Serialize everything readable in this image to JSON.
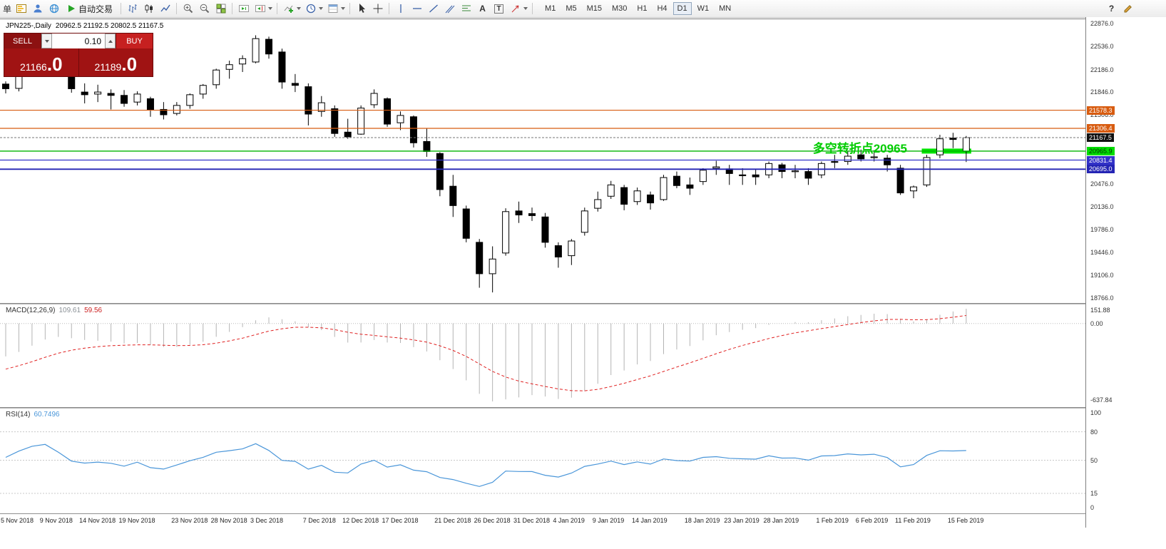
{
  "toolbar": {
    "new_order_fragment": "单",
    "autotrading_label": "自动交易",
    "help_label": "?",
    "icon_glyphs": {
      "text_tool": "A",
      "label_tool": "T"
    },
    "timeframes": [
      "M1",
      "M5",
      "M15",
      "M30",
      "H1",
      "H4",
      "D1",
      "W1",
      "MN"
    ],
    "active_timeframe": "D1",
    "icons": [
      "new-order",
      "market-watch",
      "accounts",
      "navigator",
      "autotrading",
      "bar-chart",
      "candlestick-chart",
      "line-chart",
      "zoom-in",
      "zoom-out",
      "tile-windows",
      "auto-scroll",
      "chart-shift",
      "indicators",
      "periods",
      "templates",
      "cursor",
      "crosshair",
      "vertical-line",
      "horizontal-line",
      "trendline",
      "equidistant-channel",
      "fibonacci",
      "text",
      "text-label",
      "arrow-tools",
      "help",
      "draw-cursor"
    ]
  },
  "chart_header": {
    "symbol_period": "JPN225-,Daily",
    "ohlc": "20962.5 21192.5 20802.5 21167.5"
  },
  "one_click": {
    "sell_label": "SELL",
    "buy_label": "BUY",
    "lot": "0.10",
    "sell_price_main": "21166",
    "sell_price_frac": ".0",
    "buy_price_main": "21189",
    "buy_price_frac": ".0"
  },
  "annotation": {
    "text": "多空转折点20965",
    "color": "#00cc00"
  },
  "chart_data": {
    "type": "candlestick",
    "symbol": "JPN225",
    "period": "Daily",
    "title": "JPN225-,Daily",
    "last_ohlc": {
      "open": 20962.5,
      "high": 21192.5,
      "low": 20802.5,
      "close": 21167.5
    },
    "colors": {
      "bull": "#ffffff",
      "bear": "#000000",
      "wick": "#000000",
      "highlight": "#00e400",
      "background": "#ffffff"
    },
    "y_axis": {
      "range": [
        18766.0,
        22876.0
      ],
      "ticks": [
        22876.0,
        22536.0,
        22186.0,
        21846.0,
        21506.0,
        20476.0,
        20136.0,
        19786.0,
        19446.0,
        19106.0,
        18766.0
      ]
    },
    "x_axis": {
      "labels": [
        "5 Nov 2018",
        "9 Nov 2018",
        "14 Nov 2018",
        "19 Nov 2018",
        "23 Nov 2018",
        "28 Nov 2018",
        "3 Dec 2018",
        "7 Dec 2018",
        "12 Dec 2018",
        "17 Dec 2018",
        "21 Dec 2018",
        "26 Dec 2018",
        "31 Dec 2018",
        "4 Jan 2019",
        "9 Jan 2019",
        "14 Jan 2019",
        "18 Jan 2019",
        "23 Jan 2019",
        "28 Jan 2019",
        "1 Feb 2019",
        "6 Feb 2019",
        "11 Feb 2019",
        "15 Feb 2019"
      ]
    },
    "candles": [
      [
        "5 Nov 2018",
        21970,
        22010,
        21830,
        21900
      ],
      [
        "6 Nov 2018",
        21905,
        22165,
        21860,
        22150
      ],
      [
        "7 Nov 2018",
        22180,
        22430,
        22110,
        22390
      ],
      [
        "8 Nov 2018",
        22420,
        22580,
        22300,
        22490
      ],
      [
        "9 Nov 2018",
        22450,
        22500,
        22180,
        22250
      ],
      [
        "12 Nov 2018",
        22270,
        22310,
        21840,
        21900
      ],
      [
        "13 Nov 2018",
        21850,
        21980,
        21680,
        21810
      ],
      [
        "14 Nov 2018",
        21820,
        21960,
        21700,
        21850
      ],
      [
        "15 Nov 2018",
        21830,
        21890,
        21590,
        21800
      ],
      [
        "16 Nov 2018",
        21800,
        21880,
        21630,
        21680
      ],
      [
        "19 Nov 2018",
        21700,
        21860,
        21650,
        21820
      ],
      [
        "20 Nov 2018",
        21750,
        21780,
        21480,
        21580
      ],
      [
        "21 Nov 2018",
        21590,
        21700,
        21440,
        21510
      ],
      [
        "22 Nov 2018",
        21530,
        21700,
        21500,
        21650
      ],
      [
        "23 Nov 2018",
        21650,
        21830,
        21600,
        21810
      ],
      [
        "26 Nov 2018",
        21820,
        21970,
        21750,
        21950
      ],
      [
        "27 Nov 2018",
        21960,
        22200,
        21900,
        22180
      ],
      [
        "28 Nov 2018",
        22190,
        22320,
        22050,
        22260
      ],
      [
        "29 Nov 2018",
        22270,
        22400,
        22150,
        22350
      ],
      [
        "30 Nov 2018",
        22300,
        22700,
        22280,
        22650
      ],
      [
        "3 Dec 2018",
        22640,
        22680,
        22350,
        22420
      ],
      [
        "4 Dec 2018",
        22450,
        22500,
        21900,
        22000
      ],
      [
        "5 Dec 2018",
        21980,
        22120,
        21850,
        21950
      ],
      [
        "6 Dec 2018",
        21930,
        21980,
        21350,
        21520
      ],
      [
        "7 Dec 2018",
        21560,
        21790,
        21480,
        21690
      ],
      [
        "10 Dec 2018",
        21600,
        21650,
        21180,
        21230
      ],
      [
        "11 Dec 2018",
        21250,
        21450,
        21150,
        21180
      ],
      [
        "12 Dec 2018",
        21220,
        21650,
        21210,
        21610
      ],
      [
        "13 Dec 2018",
        21660,
        21890,
        21610,
        21830
      ],
      [
        "14 Dec 2018",
        21750,
        21770,
        21330,
        21370
      ],
      [
        "17 Dec 2018",
        21390,
        21560,
        21280,
        21500
      ],
      [
        "18 Dec 2018",
        21480,
        21500,
        21020,
        21090
      ],
      [
        "19 Dec 2018",
        21110,
        21310,
        20880,
        20960
      ],
      [
        "20 Dec 2018",
        20930,
        20950,
        20290,
        20390
      ],
      [
        "21 Dec 2018",
        20440,
        20610,
        19980,
        20150
      ],
      [
        "24 Dec 2018",
        20100,
        20150,
        19600,
        19660
      ],
      [
        "25 Dec 2018",
        19600,
        19650,
        18920,
        19130
      ],
      [
        "26 Dec 2018",
        19130,
        19540,
        18850,
        19350
      ],
      [
        "27 Dec 2018",
        19440,
        20110,
        19400,
        20060
      ],
      [
        "28 Dec 2018",
        20070,
        20210,
        19890,
        20010
      ],
      [
        "31 Dec 2018",
        20030,
        20120,
        19920,
        20000
      ],
      [
        "2 Jan 2019",
        19980,
        20040,
        19520,
        19600
      ],
      [
        "3 Jan 2019",
        19550,
        19600,
        19220,
        19380
      ],
      [
        "4 Jan 2019",
        19400,
        19650,
        19260,
        19620
      ],
      [
        "7 Jan 2019",
        19750,
        20120,
        19700,
        20070
      ],
      [
        "8 Jan 2019",
        20110,
        20360,
        20060,
        20240
      ],
      [
        "9 Jan 2019",
        20290,
        20520,
        20250,
        20460
      ],
      [
        "10 Jan 2019",
        20420,
        20460,
        20080,
        20170
      ],
      [
        "11 Jan 2019",
        20210,
        20420,
        20160,
        20370
      ],
      [
        "14 Jan 2019",
        20310,
        20360,
        20090,
        20190
      ],
      [
        "15 Jan 2019",
        20240,
        20610,
        20220,
        20570
      ],
      [
        "16 Jan 2019",
        20590,
        20660,
        20410,
        20450
      ],
      [
        "17 Jan 2019",
        20460,
        20570,
        20310,
        20410
      ],
      [
        "18 Jan 2019",
        20510,
        20710,
        20460,
        20680
      ],
      [
        "21 Jan 2019",
        20710,
        20820,
        20610,
        20730
      ],
      [
        "22 Jan 2019",
        20700,
        20760,
        20460,
        20630
      ],
      [
        "23 Jan 2019",
        20610,
        20710,
        20460,
        20600
      ],
      [
        "24 Jan 2019",
        20610,
        20690,
        20460,
        20580
      ],
      [
        "25 Jan 2019",
        20610,
        20810,
        20560,
        20780
      ],
      [
        "28 Jan 2019",
        20760,
        20790,
        20560,
        20660
      ],
      [
        "29 Jan 2019",
        20670,
        20760,
        20560,
        20670
      ],
      [
        "30 Jan 2019",
        20660,
        20710,
        20460,
        20560
      ],
      [
        "31 Jan 2019",
        20610,
        20810,
        20560,
        20780
      ],
      [
        "1 Feb 2019",
        20810,
        20910,
        20710,
        20800
      ],
      [
        "4 Feb 2019",
        20810,
        20960,
        20760,
        20890
      ],
      [
        "5 Feb 2019",
        20910,
        20990,
        20810,
        20850
      ],
      [
        "6 Feb 2019",
        20880,
        20980,
        20810,
        20880
      ],
      [
        "7 Feb 2019",
        20860,
        20910,
        20660,
        20760
      ],
      [
        "8 Feb 2019",
        20710,
        20760,
        20310,
        20340
      ],
      [
        "11 Feb 2019",
        20370,
        20450,
        20260,
        20430
      ],
      [
        "12 Feb 2019",
        20460,
        20910,
        20430,
        20870
      ],
      [
        "13 Feb 2019",
        20910,
        21210,
        20860,
        21150
      ],
      [
        "14 Feb 2019",
        21160,
        21240,
        21010,
        21140
      ],
      [
        "15 Feb 2019",
        20962.5,
        21192.5,
        20802.5,
        21167.5
      ]
    ],
    "hlines": [
      {
        "price": 21578.3,
        "label": "21578.3",
        "color": "#d85c10",
        "tag_bg": "#d85c10",
        "style": "solid",
        "width": 1.2
      },
      {
        "price": 21306.4,
        "label": "21306.4",
        "color": "#d85c10",
        "tag_bg": "#d85c10",
        "style": "solid",
        "width": 1.2
      },
      {
        "price": 21167.5,
        "label": "21167.5",
        "color": "#777777",
        "tag_bg": "#111111",
        "style": "dashed",
        "width": 1
      },
      {
        "price": 20965.9,
        "label": "20965.9",
        "color": "#00b400",
        "tag_bg": "#00dc00",
        "tag_fg": "#003300",
        "style": "solid",
        "width": 1.4,
        "highlight_segment": {
          "from_index": 70,
          "to_index": 73
        }
      },
      {
        "price": 20831.4,
        "label": "20831.4",
        "color": "#3232c8",
        "tag_bg": "#3232c8",
        "style": "solid",
        "width": 1.2
      },
      {
        "price": 20695.0,
        "label": "20695.0",
        "color": "#2424b4",
        "tag_bg": "#2424b4",
        "style": "solid",
        "width": 1.8
      }
    ],
    "indicators": [
      {
        "name": "MACD",
        "params": "(12,26,9)",
        "label": "MACD(12,26,9)",
        "values": [
          "109.61",
          "59.56"
        ],
        "axis_labels": [
          "151.88",
          "0.00",
          "-637.84"
        ],
        "colors": {
          "histogram": "#b4b4b4",
          "signal": "#e02020"
        }
      },
      {
        "name": "RSI",
        "params": "(14)",
        "label": "RSI(14)",
        "value": "60.7496",
        "axis_labels": [
          "100",
          "80",
          "50",
          "15",
          "0"
        ],
        "levels": [
          80,
          50,
          15
        ],
        "color": "#4a96d9"
      }
    ]
  }
}
